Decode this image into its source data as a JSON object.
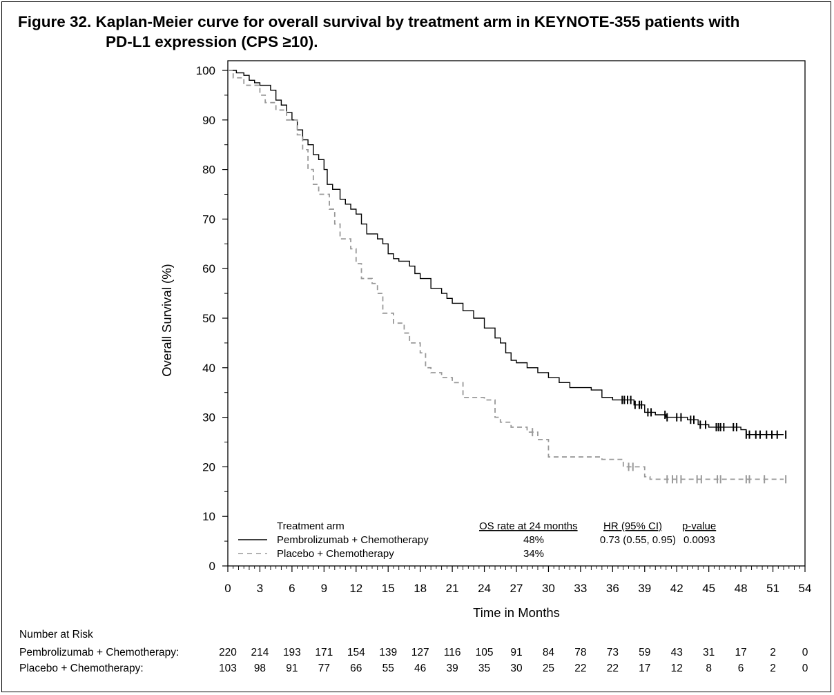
{
  "title_line1": "Figure 32. Kaplan-Meier curve for overall survival by treatment arm in KEYNOTE-355 patients with",
  "title_line2": "PD-L1 expression (CPS ≥10).",
  "chart_data": {
    "type": "line",
    "subtype": "kaplan-meier",
    "xlabel": "Time in Months",
    "ylabel": "Overall Survival (%)",
    "xlim": [
      0,
      54
    ],
    "ylim": [
      0,
      100
    ],
    "x_ticks": [
      0,
      3,
      6,
      9,
      12,
      15,
      18,
      21,
      24,
      27,
      30,
      33,
      36,
      39,
      42,
      45,
      48,
      51,
      54
    ],
    "y_ticks": [
      0,
      10,
      20,
      30,
      40,
      50,
      60,
      70,
      80,
      90,
      100
    ],
    "grid": false,
    "legend": {
      "placement": "bottom-left",
      "header_arm": "Treatment arm",
      "header_os": "OS rate at 24 months",
      "header_hr": "HR (95% CI)",
      "header_p": "p-value"
    },
    "series": [
      {
        "name": "Pembrolizumab + Chemotherapy",
        "os_24": "48%",
        "hr": "0.73 (0.55, 0.95)",
        "p": "0.0093",
        "color": "#000000",
        "dash": "solid",
        "points": [
          [
            0,
            100
          ],
          [
            0.8,
            99.5
          ],
          [
            1.5,
            99
          ],
          [
            2,
            98
          ],
          [
            2.5,
            97.5
          ],
          [
            3,
            97
          ],
          [
            4,
            96
          ],
          [
            4.5,
            94
          ],
          [
            5,
            93
          ],
          [
            5.5,
            91.5
          ],
          [
            6,
            90
          ],
          [
            6.5,
            88
          ],
          [
            7,
            86
          ],
          [
            7.5,
            85
          ],
          [
            8,
            83
          ],
          [
            8.5,
            82
          ],
          [
            9,
            80
          ],
          [
            9.3,
            77
          ],
          [
            9.8,
            76
          ],
          [
            10.5,
            74
          ],
          [
            11,
            73
          ],
          [
            11.5,
            72
          ],
          [
            12,
            71
          ],
          [
            12.5,
            69
          ],
          [
            13,
            67
          ],
          [
            14,
            66
          ],
          [
            14.5,
            65
          ],
          [
            15,
            63
          ],
          [
            15.5,
            62
          ],
          [
            16,
            61.5
          ],
          [
            17,
            60.5
          ],
          [
            17.5,
            59
          ],
          [
            18,
            58
          ],
          [
            19,
            56
          ],
          [
            20,
            55
          ],
          [
            20.5,
            54
          ],
          [
            21,
            53
          ],
          [
            22,
            51.5
          ],
          [
            23,
            50
          ],
          [
            24,
            48
          ],
          [
            25,
            46
          ],
          [
            25.5,
            45
          ],
          [
            26,
            43
          ],
          [
            26.5,
            41.5
          ],
          [
            27,
            41
          ],
          [
            28,
            40
          ],
          [
            29,
            39
          ],
          [
            30,
            38
          ],
          [
            31,
            37
          ],
          [
            32,
            36
          ],
          [
            34,
            35.5
          ],
          [
            35,
            34
          ],
          [
            36,
            33.5
          ],
          [
            38,
            32.5
          ],
          [
            39,
            31
          ],
          [
            40,
            30.5
          ],
          [
            41,
            30
          ],
          [
            43,
            29.5
          ],
          [
            44,
            28.5
          ],
          [
            45,
            28
          ],
          [
            48,
            27.5
          ],
          [
            48.5,
            26.5
          ],
          [
            52,
            26.5
          ]
        ],
        "censors": [
          36.9,
          37.1,
          37.4,
          37.7,
          38.1,
          38.5,
          38.7,
          39.3,
          39.6,
          40.9,
          41.1,
          42,
          42.4,
          43.3,
          43.6,
          44.2,
          44.7,
          45.7,
          45.9,
          46.1,
          46.4,
          47.3,
          47.6,
          48.5,
          48.8,
          49.4,
          49.8,
          50.4,
          50.9,
          51.4,
          52.2
        ]
      },
      {
        "name": "Placebo + Chemotherapy",
        "os_24": "34%",
        "hr": "",
        "p": "",
        "color": "#999999",
        "dash": "dashed",
        "points": [
          [
            0,
            100
          ],
          [
            0.5,
            98.5
          ],
          [
            1.5,
            97
          ],
          [
            3,
            95
          ],
          [
            3.5,
            93.5
          ],
          [
            4.5,
            92
          ],
          [
            5.5,
            90
          ],
          [
            6.5,
            87
          ],
          [
            7,
            84
          ],
          [
            7.5,
            80
          ],
          [
            8,
            77
          ],
          [
            8.5,
            75
          ],
          [
            9.5,
            72
          ],
          [
            10,
            69
          ],
          [
            10.5,
            66
          ],
          [
            11.5,
            64
          ],
          [
            12,
            61
          ],
          [
            12.5,
            58
          ],
          [
            13.5,
            57
          ],
          [
            14,
            55
          ],
          [
            14.5,
            51
          ],
          [
            15.5,
            49
          ],
          [
            16.5,
            47
          ],
          [
            17,
            45
          ],
          [
            18,
            43
          ],
          [
            18.5,
            40
          ],
          [
            19,
            39
          ],
          [
            20,
            38
          ],
          [
            21,
            37
          ],
          [
            22,
            34
          ],
          [
            24,
            33.5
          ],
          [
            25,
            30
          ],
          [
            25.5,
            29
          ],
          [
            26.5,
            28
          ],
          [
            28,
            27
          ],
          [
            29,
            25.5
          ],
          [
            30,
            22
          ],
          [
            35,
            21.5
          ],
          [
            37,
            20
          ],
          [
            39,
            18
          ],
          [
            39.5,
            17.5
          ],
          [
            52,
            17.5
          ]
        ],
        "censors": [
          28.5,
          37.5,
          37.9,
          41.1,
          41.6,
          42,
          42.4,
          43.9,
          44.3,
          45.8,
          46.1,
          48.5,
          48.8,
          50.2,
          52.2
        ]
      }
    ]
  },
  "at_risk": {
    "label": "Number at Risk",
    "rows": [
      {
        "label": "Pembrolizumab + Chemotherapy:",
        "values": [
          "220",
          "214",
          "193",
          "171",
          "154",
          "139",
          "127",
          "116",
          "105",
          "91",
          "84",
          "78",
          "73",
          "59",
          "43",
          "31",
          "17",
          "2",
          "0"
        ]
      },
      {
        "label": "Placebo + Chemotherapy:",
        "values": [
          "103",
          "98",
          "91",
          "77",
          "66",
          "55",
          "46",
          "39",
          "35",
          "30",
          "25",
          "22",
          "22",
          "17",
          "12",
          "8",
          "6",
          "2",
          "0"
        ]
      }
    ]
  }
}
